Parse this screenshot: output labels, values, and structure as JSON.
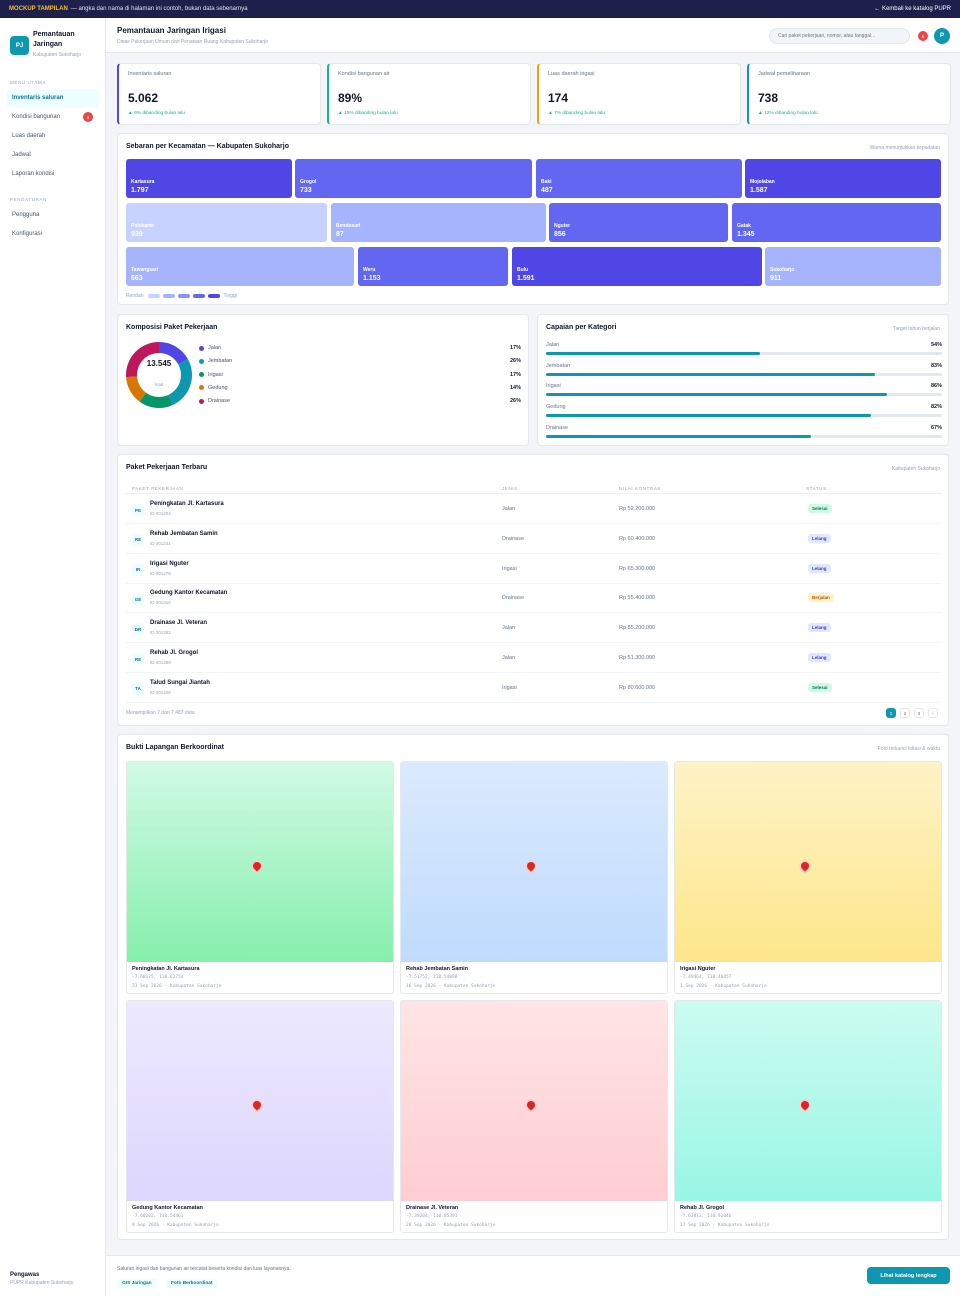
{
  "banner": {
    "tag": "MOCKUP TAMPILAN",
    "text": "— angka dan nama di halaman ini contoh, bukan data sebenarnya",
    "back_link": "← Kembali ke katalog PUPR"
  },
  "sidebar": {
    "logo": "PJ",
    "title": "Pemantauan Jaringan",
    "subtitle": "Kabupaten Sukoharjo",
    "sections": [
      {
        "title": "MENU UTAMA",
        "items": [
          {
            "label": "Inventaris saluran",
            "active": true
          },
          {
            "label": "Kondisi bangunan",
            "badge": "3"
          },
          {
            "label": "Luas daerah"
          },
          {
            "label": "Jadwal"
          },
          {
            "label": "Laporan kondisi"
          }
        ]
      },
      {
        "title": "PENGATURAN",
        "items": [
          {
            "label": "Pengguna"
          },
          {
            "label": "Konfigurasi"
          }
        ]
      }
    ],
    "footer": {
      "role": "Pengawas",
      "org": "PUPR Kabupaten Sukoharjo"
    }
  },
  "header": {
    "title": "Pemantauan Jaringan Irigasi",
    "subtitle": "Dinas Pekerjaan Umum dan Penataan Ruang Kabupaten Sukoharjo",
    "search_placeholder": "Cari paket pekerjaan, nomor, atau tanggal...",
    "notification_count": "5",
    "avatar": "P"
  },
  "stats": [
    {
      "label": "Inventaris saluran",
      "value": "5.062",
      "delta": "▲ 9% dibanding bulan lalu",
      "accent": "#4f46e5"
    },
    {
      "label": "Kondisi bangunan air",
      "value": "89%",
      "delta": "▲ 15% dibanding bulan lalu",
      "accent": "#10b981"
    },
    {
      "label": "Luas daerah irigasi",
      "value": "174",
      "delta": "▲ 7% dibanding bulan lalu",
      "accent": "#f59e0b"
    },
    {
      "label": "Jadwal pemeliharaan",
      "value": "738",
      "delta": "▲ 12% dibanding bulan lalu",
      "accent": "#0e98b0"
    }
  ],
  "treemap": {
    "title": "Sebaran per Kecamatan — Kabupaten Sukoharjo",
    "note": "Warna menunjukkan kepadatan",
    "legend_low": "Rendah",
    "legend_high": "Tinggi",
    "rows": [
      [
        {
          "name": "Kartasura",
          "value": "1.797",
          "level": 1
        },
        {
          "name": "Grogol",
          "value": "733",
          "level": 2
        },
        {
          "name": "Baki",
          "value": "487",
          "level": 2
        },
        {
          "name": "Mojolaban",
          "value": "1.587",
          "level": 1
        }
      ],
      [
        {
          "name": "Polokarto",
          "value": "939",
          "level": 5
        },
        {
          "name": "Bendosari",
          "value": "87",
          "level": 4
        },
        {
          "name": "Nguter",
          "value": "856",
          "level": 2
        },
        {
          "name": "Gatak",
          "value": "1.345",
          "level": 2
        }
      ],
      [
        {
          "name": "Tawangsari",
          "value": "663",
          "level": 4
        },
        {
          "name": "Weru",
          "value": "1.153",
          "level": 2
        },
        {
          "name": "Bulu",
          "value": "1.591",
          "level": 1
        },
        {
          "name": "Sukoharjo",
          "value": "911",
          "level": 4
        }
      ]
    ]
  },
  "composition": {
    "title": "Komposisi Paket Pekerjaan",
    "total": "13.545",
    "total_label": "total",
    "items": [
      {
        "label": "Jalan",
        "percent": "17%",
        "value": 17,
        "color": "#4f46e5"
      },
      {
        "label": "Jembatan",
        "percent": "26%",
        "value": 26,
        "color": "#0e98b0"
      },
      {
        "label": "Irigasi",
        "percent": "17%",
        "value": 17,
        "color": "#059669"
      },
      {
        "label": "Gedung",
        "percent": "14%",
        "value": 14,
        "color": "#d97706"
      },
      {
        "label": "Drainase",
        "percent": "26%",
        "value": 26,
        "color": "#be185d"
      }
    ]
  },
  "achievement": {
    "title": "Capaian per Kategori",
    "note": "Target tahun berjalan",
    "items": [
      {
        "label": "Jalan",
        "percent": "54%",
        "value": 54
      },
      {
        "label": "Jembatan",
        "percent": "83%",
        "value": 83
      },
      {
        "label": "Irigasi",
        "percent": "86%",
        "value": 86
      },
      {
        "label": "Gedung",
        "percent": "82%",
        "value": 82
      },
      {
        "label": "Drainase",
        "percent": "67%",
        "value": 67
      }
    ]
  },
  "table": {
    "title": "Paket Pekerjaan Terbaru",
    "note": "Kabupaten Sukoharjo",
    "columns": [
      "PAKET PEKERJAAN",
      "JENIS",
      "NILAI KONTRAK",
      "STATUS"
    ],
    "rows": [
      {
        "icon": "PE",
        "name": "Peningkatan Jl. Kartasura",
        "id": "ID 001204",
        "type": "Jalan",
        "contract": "Rp 52.200.000",
        "status": "Selesai",
        "status_kind": "done"
      },
      {
        "icon": "RE",
        "name": "Rehab Jembatan Samin",
        "id": "ID 001241",
        "type": "Drainase",
        "contract": "Rp 60.400.000",
        "status": "Lelang",
        "status_kind": "auction"
      },
      {
        "icon": "IR",
        "name": "Irigasi Nguter",
        "id": "ID 001278",
        "type": "Irigasi",
        "contract": "Rp 65.300.000",
        "status": "Lelang",
        "status_kind": "auction"
      },
      {
        "icon": "GE",
        "name": "Gedung Kantor Kecamatan",
        "id": "ID 001315",
        "type": "Drainase",
        "contract": "Rp 55.400.000",
        "status": "Berjalan",
        "status_kind": "run"
      },
      {
        "icon": "DR",
        "name": "Drainase Jl. Veteran",
        "id": "ID 001352",
        "type": "Jalan",
        "contract": "Rp 85.200.000",
        "status": "Lelang",
        "status_kind": "auction"
      },
      {
        "icon": "RE",
        "name": "Rehab Jl. Grogol",
        "id": "ID 001389",
        "type": "Jalan",
        "contract": "Rp 51.300.000",
        "status": "Lelang",
        "status_kind": "auction"
      },
      {
        "icon": "TA",
        "name": "Talud Sungai Jiantah",
        "id": "ID 001426",
        "type": "Irigasi",
        "contract": "Rp 80.600.000",
        "status": "Selesai",
        "status_kind": "done"
      }
    ],
    "footer_text": "Menampilkan 7 dari 7.487 data",
    "pages": [
      "1",
      "2",
      "3",
      "›"
    ]
  },
  "photos": {
    "title": "Bukti Lapangan Berkoordinat",
    "note": "Foto terkunci lokasi & waktu",
    "items": [
      {
        "caption": "Peningkatan Jl. Kartasura",
        "coords": "-7.60175, 110.62754",
        "meta": "23 Sep 2026 · Kabupaten Sukoharjo",
        "from": "#d1fae5",
        "to": "#86efac"
      },
      {
        "caption": "Rehab Jembatan Samin",
        "coords": "-7.51752, 110.54098",
        "meta": "16 Sep 2026 · Kabupaten Sukoharjo",
        "from": "#dbeafe",
        "to": "#bfdbfe"
      },
      {
        "caption": "Irigasi Nguter",
        "coords": "-7.49464, 110.46457",
        "meta": "1 Sep 2026 · Kabupaten Sukoharjo",
        "from": "#fef3c7",
        "to": "#fde68a"
      },
      {
        "caption": "Gedung Kantor Kecamatan",
        "coords": "-7.60202, 110.54461",
        "meta": "8 Sep 2026 · Kabupaten Sukoharjo",
        "from": "#ede9fe",
        "to": "#ddd6fe"
      },
      {
        "caption": "Drainase Jl. Veteran",
        "coords": "-7.39204, 110.85391",
        "meta": "20 Sep 2026 · Kabupaten Sukoharjo",
        "from": "#ffe4e6",
        "to": "#fecdd3"
      },
      {
        "caption": "Rehab Jl. Grogol",
        "coords": "-7.63813, 110.92046",
        "meta": "17 Sep 2026 · Kabupaten Sukoharjo",
        "from": "#ccfbf1",
        "to": "#99f6e4"
      }
    ]
  },
  "footer": {
    "text": "Saluran irigasi dan bangunan air tercatat beserta kondisi dan luas layanannya.",
    "chips": [
      "GIS Jaringan",
      "Foto Berkoordinat"
    ],
    "cta": "Lihat katalog lengkap"
  }
}
